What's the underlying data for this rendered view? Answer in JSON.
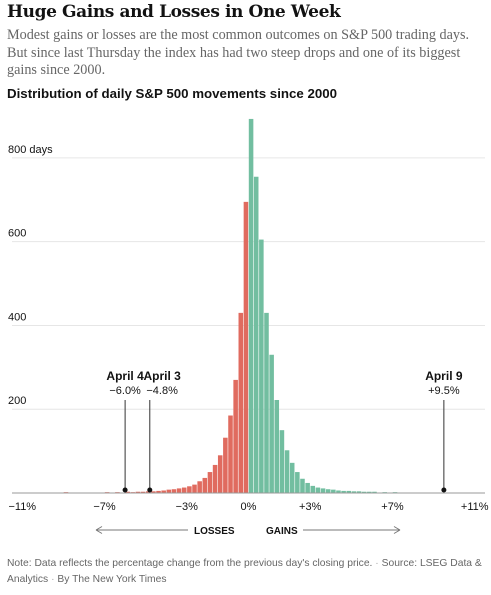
{
  "headline": "Huge Gains and Losses in One Week",
  "dek": "Modest gains or losses are the most common outcomes on S&P 500 trading days. But since last Thursday the index has had two steep drops and one of its biggest gains since 2000.",
  "colors": {
    "loss": "#e06b5f",
    "gain": "#72bea0",
    "text": "#121212",
    "muted": "#666666",
    "grid": "#e6e6e6",
    "axis": "#333333"
  },
  "chart_data": {
    "type": "bar",
    "title": "Distribution of daily S&P 500 movements since 2000",
    "xlabel": "",
    "ylabel": "",
    "xlim": [
      -11.5,
      11.5
    ],
    "ylim": [
      0,
      900
    ],
    "bin_width": 0.25,
    "x_ticks": [
      {
        "value": -11,
        "label": "−11%"
      },
      {
        "value": -7,
        "label": "−7%"
      },
      {
        "value": -3,
        "label": "−3%"
      },
      {
        "value": 0,
        "label": "0%"
      },
      {
        "value": 3,
        "label": "+3%"
      },
      {
        "value": 7,
        "label": "+7%"
      },
      {
        "value": 11,
        "label": "+11%"
      }
    ],
    "y_ticks": [
      {
        "value": 200,
        "label": "200"
      },
      {
        "value": 400,
        "label": "400"
      },
      {
        "value": 600,
        "label": "600"
      },
      {
        "value": 800,
        "label": "800 days"
      }
    ],
    "series": [
      {
        "name": "Losses",
        "color": "#e06b5f",
        "bins": [
          [
            -9.0,
            2
          ],
          [
            -8.0,
            1
          ],
          [
            -7.0,
            2
          ],
          [
            -6.5,
            2
          ],
          [
            -6.0,
            3
          ],
          [
            -5.75,
            2
          ],
          [
            -5.5,
            3
          ],
          [
            -5.25,
            3
          ],
          [
            -5.0,
            4
          ],
          [
            -4.75,
            4
          ],
          [
            -4.5,
            5
          ],
          [
            -4.25,
            6
          ],
          [
            -4.0,
            8
          ],
          [
            -3.75,
            9
          ],
          [
            -3.5,
            11
          ],
          [
            -3.25,
            13
          ],
          [
            -3.0,
            16
          ],
          [
            -2.75,
            20
          ],
          [
            -2.5,
            28
          ],
          [
            -2.25,
            36
          ],
          [
            -2.0,
            50
          ],
          [
            -1.75,
            67
          ],
          [
            -1.5,
            90
          ],
          [
            -1.25,
            132
          ],
          [
            -1.0,
            185
          ],
          [
            -0.75,
            270
          ],
          [
            -0.5,
            430
          ],
          [
            -0.25,
            695
          ]
        ]
      },
      {
        "name": "Gains",
        "color": "#72bea0",
        "bins": [
          [
            0.0,
            893
          ],
          [
            0.25,
            755
          ],
          [
            0.5,
            605
          ],
          [
            0.75,
            430
          ],
          [
            1.0,
            330
          ],
          [
            1.25,
            222
          ],
          [
            1.5,
            150
          ],
          [
            1.75,
            102
          ],
          [
            2.0,
            72
          ],
          [
            2.25,
            50
          ],
          [
            2.5,
            34
          ],
          [
            2.75,
            24
          ],
          [
            3.0,
            17
          ],
          [
            3.25,
            13
          ],
          [
            3.5,
            11
          ],
          [
            3.75,
            9
          ],
          [
            4.0,
            8
          ],
          [
            4.25,
            6
          ],
          [
            4.5,
            5
          ],
          [
            4.75,
            5
          ],
          [
            5.0,
            4
          ],
          [
            5.25,
            4
          ],
          [
            5.5,
            3
          ],
          [
            5.75,
            3
          ],
          [
            6.0,
            3
          ],
          [
            6.5,
            2
          ],
          [
            7.0,
            2
          ],
          [
            8.0,
            1
          ]
        ]
      }
    ],
    "annotations": [
      {
        "date": "April 4",
        "value": -6.0,
        "value_label": "−6.0%",
        "label_x": -6.0
      },
      {
        "date": "April 3",
        "value": -4.8,
        "value_label": "−4.8%",
        "label_x": -4.2
      },
      {
        "date": "April 9",
        "value": 9.5,
        "value_label": "+9.5%",
        "label_x": 9.5
      }
    ],
    "direction_labels": {
      "losses": "LOSSES",
      "gains": "GAINS"
    }
  },
  "note": {
    "text": "Note: Data reflects the percentage change from the previous day's closing price.",
    "source": "Source: LSEG Data & Analytics",
    "credit": "By The New York Times"
  }
}
